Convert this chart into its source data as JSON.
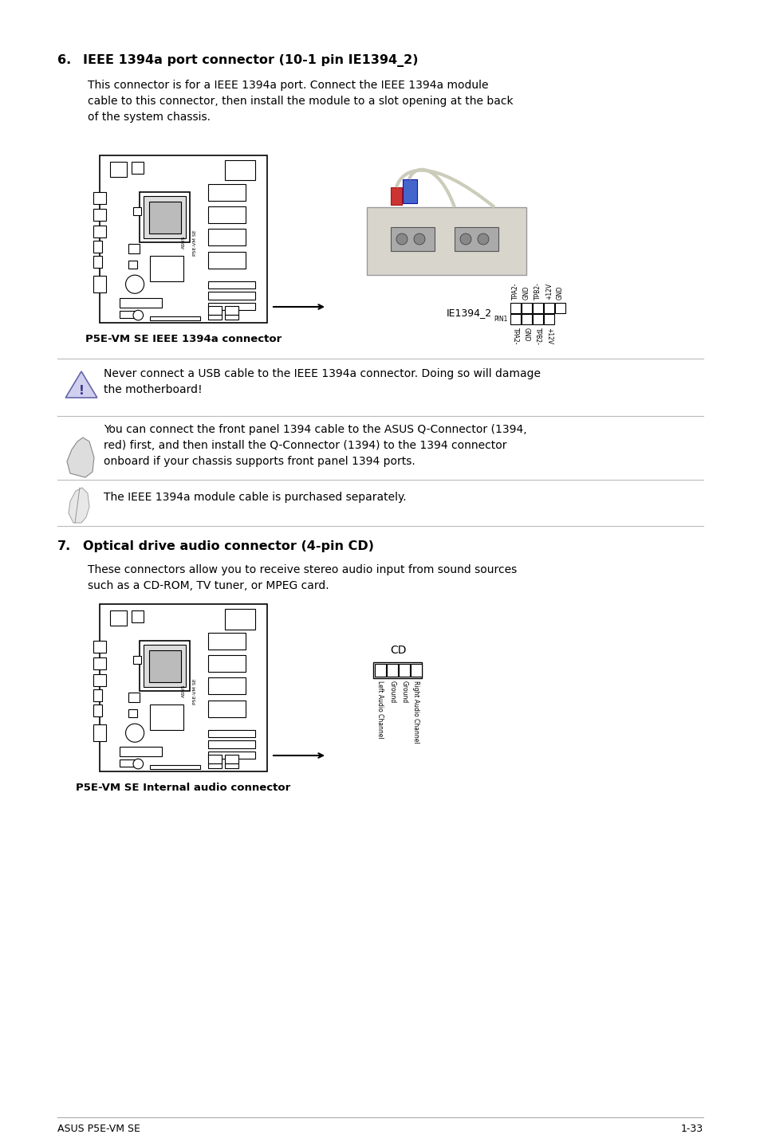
{
  "bg_color": "#ffffff",
  "footer_text_left": "ASUS P5E-VM SE",
  "footer_text_right": "1-33",
  "section6_num": "6.",
  "section6_heading": "IEEE 1394a port connector (10-1 pin IE1394_2)",
  "section6_body1": "This connector is for a IEEE 1394a port. Connect the IEEE 1394a module",
  "section6_body2": "cable to this connector, then install the module to a slot opening at the back",
  "section6_body3": "of the system chassis.",
  "section6_caption": "P5E-VM SE IEEE 1394a connector",
  "ie1394_label": "IE1394_2",
  "ie1394_top_pins": [
    "TPA2-",
    "GND",
    "TPB2-",
    "+12V",
    "GND"
  ],
  "ie1394_bot_pins": [
    "TPA2-",
    "GND",
    "TPB2-",
    "+12V"
  ],
  "pin1_label": "PIN1",
  "warning_text1": "Never connect a USB cable to the IEEE 1394a connector. Doing so will damage",
  "warning_text2": "the motherboard!",
  "note1_text1": "You can connect the front panel 1394 cable to the ASUS Q-Connector (1394,",
  "note1_text2": "red) first, and then install the Q-Connector (1394) to the 1394 connector",
  "note1_text3": "onboard if your chassis supports front panel 1394 ports.",
  "note2_text": "The IEEE 1394a module cable is purchased separately.",
  "section7_num": "7.",
  "section7_heading": "Optical drive audio connector (4-pin CD)",
  "section7_body1": "These connectors allow you to receive stereo audio input from sound sources",
  "section7_body2": "such as a CD-ROM, TV tuner, or MPEG card.",
  "section7_caption": "P5E-VM SE Internal audio connector",
  "cd_label": "CD",
  "cd_pins": [
    "Left Audio Channel",
    "Ground",
    "Ground",
    "Right Audio Channel"
  ]
}
